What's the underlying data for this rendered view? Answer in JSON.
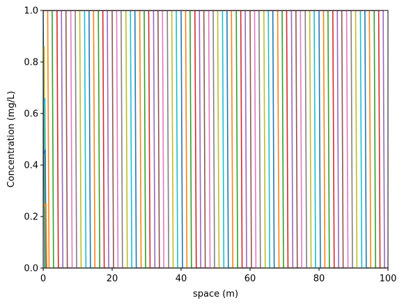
{
  "chart_data": {
    "type": "line",
    "title": "",
    "xlabel": "space (m)",
    "ylabel": "Concentration (mg/L)",
    "xlim": [
      0,
      100
    ],
    "ylim": [
      0,
      1
    ],
    "x_ticks": [
      0,
      20,
      40,
      60,
      80,
      100
    ],
    "x_tick_labels": [
      "0",
      "20",
      "40",
      "60",
      "80",
      "100"
    ],
    "y_ticks": [
      0.0,
      0.2,
      0.4,
      0.6,
      0.8,
      1.0
    ],
    "y_tick_labels": [
      "0.0",
      "0.2",
      "0.4",
      "0.6",
      "0.8",
      "1.0"
    ],
    "grid": false,
    "legend": "none",
    "series_description": "Sequence of step concentration profiles: each profile is 1.0 mg/L upstream of a sharp front and 0.0 downstream; successive fronts move to the right by about 1.33 m.",
    "front_positions_m": [
      0.0,
      1.3,
      2.6,
      4.0,
      5.3,
      6.6,
      8.0,
      9.3,
      10.6,
      12.0,
      13.3,
      14.6,
      16.0,
      17.3,
      18.6,
      20.0,
      21.3,
      22.6,
      24.0,
      25.3,
      26.6,
      28.0,
      29.3,
      30.6,
      32.0,
      33.3,
      34.6,
      36.0,
      37.3,
      38.6,
      40.0,
      41.3,
      42.6,
      44.0,
      45.3,
      46.6,
      48.0,
      49.3,
      50.6,
      52.0,
      53.3,
      54.6,
      56.0,
      57.3,
      58.6,
      60.0,
      61.3,
      62.6,
      64.0,
      65.3,
      66.6,
      68.0,
      69.3,
      70.6,
      72.0,
      73.3,
      74.6,
      76.0,
      77.3,
      78.6,
      80.0,
      81.3,
      82.6,
      84.0,
      85.3,
      86.6,
      88.0,
      89.3,
      90.6,
      92.0,
      93.3,
      94.6,
      96.0,
      97.3,
      98.6
    ],
    "front_width_m": 0.4,
    "early_profile_peaks": [
      {
        "x": 0.3,
        "y": 0.86
      },
      {
        "x": 0.5,
        "y": 0.66
      },
      {
        "x": 0.6,
        "y": 0.46
      },
      {
        "x": 0.8,
        "y": 0.25
      }
    ],
    "series_colors": [
      "#1f77b4",
      "#ff7f0e",
      "#2ca02c",
      "#d62728",
      "#9467bd",
      "#8c564b",
      "#e377c2",
      "#7f7f7f",
      "#bcbd22",
      "#17becf"
    ]
  }
}
